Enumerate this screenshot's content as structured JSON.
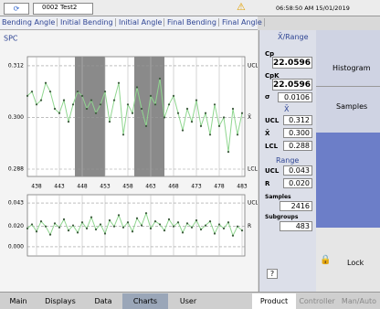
{
  "header": {
    "machine": "0002 Test2",
    "time": "06:58:50 AM 15/01/2019"
  },
  "tabs": [
    "Bending Angle",
    "Initial Bending",
    "Initial Angle",
    "Final Bending",
    "Final Angle"
  ],
  "chart_data": [
    {
      "type": "line",
      "title": "SPC",
      "x": [
        436,
        437,
        438,
        439,
        440,
        441,
        442,
        443,
        444,
        445,
        446,
        447,
        448,
        449,
        450,
        451,
        452,
        453,
        454,
        455,
        456,
        457,
        458,
        459,
        460,
        461,
        462,
        463,
        464,
        465,
        466,
        467,
        468,
        469,
        470,
        471,
        472,
        473,
        474,
        475,
        476,
        477,
        478,
        479,
        480,
        481,
        482,
        483
      ],
      "xlim": [
        436,
        483.6
      ],
      "xticks": [
        438,
        443,
        448,
        453,
        458,
        463,
        468,
        473,
        478,
        483
      ],
      "show_xtick_labels": true,
      "ylim": [
        0.2863,
        0.3141
      ],
      "yticks": [
        0.312,
        {
          "value": 0.3,
          "label": "0.300"
        },
        0.288
      ],
      "limits": [
        {
          "label": "UCL",
          "value": 0.312
        },
        {
          "label": "X̄",
          "value": 0.3
        },
        {
          "label": "LCL",
          "value": 0.288
        }
      ],
      "highlight_ranges": [
        [
          446.4,
          453
        ],
        [
          459.4,
          466
        ]
      ],
      "highlight_color": "#8a8a8a",
      "series": [
        {
          "color": "#8fd68f",
          "marker_color": "#3d5a3d",
          "values": [
            0.305,
            0.306,
            0.303,
            0.304,
            0.308,
            0.306,
            0.302,
            0.301,
            0.304,
            0.299,
            0.303,
            0.306,
            0.305,
            0.302,
            0.304,
            0.301,
            0.303,
            0.306,
            0.299,
            0.304,
            0.308,
            0.296,
            0.303,
            0.301,
            0.307,
            0.302,
            0.298,
            0.305,
            0.303,
            0.309,
            0.3,
            0.303,
            0.305,
            0.301,
            0.297,
            0.302,
            0.299,
            0.304,
            0.298,
            0.301,
            0.296,
            0.303,
            0.298,
            0.3,
            0.292,
            0.302,
            0.296,
            0.301
          ]
        }
      ]
    },
    {
      "type": "line",
      "x": [
        436,
        437,
        438,
        439,
        440,
        441,
        442,
        443,
        444,
        445,
        446,
        447,
        448,
        449,
        450,
        451,
        452,
        453,
        454,
        455,
        456,
        457,
        458,
        459,
        460,
        461,
        462,
        463,
        464,
        465,
        466,
        467,
        468,
        469,
        470,
        471,
        472,
        473,
        474,
        475,
        476,
        477,
        478,
        479,
        480,
        481,
        482,
        483
      ],
      "xlim": [
        436,
        483.6
      ],
      "xticks": [
        438,
        443,
        448,
        453,
        458,
        463,
        468,
        473,
        478,
        483
      ],
      "show_xtick_labels": false,
      "ylim": [
        -0.009,
        0.0511
      ],
      "yticks": [
        0.043,
        {
          "value": 0.02,
          "label": "0.020"
        },
        {
          "value": 0,
          "label": "0.000"
        }
      ],
      "limits": [
        {
          "label": "UCL",
          "value": 0.043
        },
        {
          "label": "R",
          "value": 0.02
        }
      ],
      "series": [
        {
          "color": "#8fd68f",
          "marker_color": "#3d5a3d",
          "values": [
            0.018,
            0.022,
            0.015,
            0.025,
            0.02,
            0.012,
            0.023,
            0.019,
            0.027,
            0.016,
            0.021,
            0.014,
            0.024,
            0.018,
            0.029,
            0.017,
            0.022,
            0.013,
            0.026,
            0.02,
            0.031,
            0.019,
            0.024,
            0.015,
            0.028,
            0.021,
            0.033,
            0.018,
            0.025,
            0.022,
            0.016,
            0.027,
            0.02,
            0.024,
            0.014,
            0.023,
            0.019,
            0.026,
            0.017,
            0.021,
            0.025,
            0.013,
            0.022,
            0.018,
            0.024,
            0.011,
            0.02,
            0.016
          ]
        }
      ]
    }
  ],
  "stats": {
    "title": "X̄/Range",
    "cp_label": "Cp",
    "cp": "22.0596",
    "cpk_label": "CpK",
    "cpk": "22.0596",
    "sigma_label": "σ",
    "sigma": "0.0106",
    "xbar_title": "X̄",
    "xbar_rows": [
      [
        "UCL",
        "0.312"
      ],
      [
        "X̄",
        "0.300"
      ],
      [
        "LCL",
        "0.288"
      ]
    ],
    "range_title": "Range",
    "range_rows": [
      [
        "UCL",
        "0.043"
      ],
      [
        "R",
        "0.020"
      ]
    ],
    "samples_label": "Samples",
    "samples": "2416",
    "subgroups_label": "Subgroups",
    "subgroups": "483",
    "help": "?"
  },
  "side_buttons": [
    "Histogram",
    "Samples"
  ],
  "lock": "Lock",
  "nav_left": [
    "Main",
    "Displays",
    "Data",
    "Charts",
    "User"
  ],
  "nav_active": 3,
  "nav_right": [
    "Product",
    "Controller",
    "Man/Auto"
  ]
}
